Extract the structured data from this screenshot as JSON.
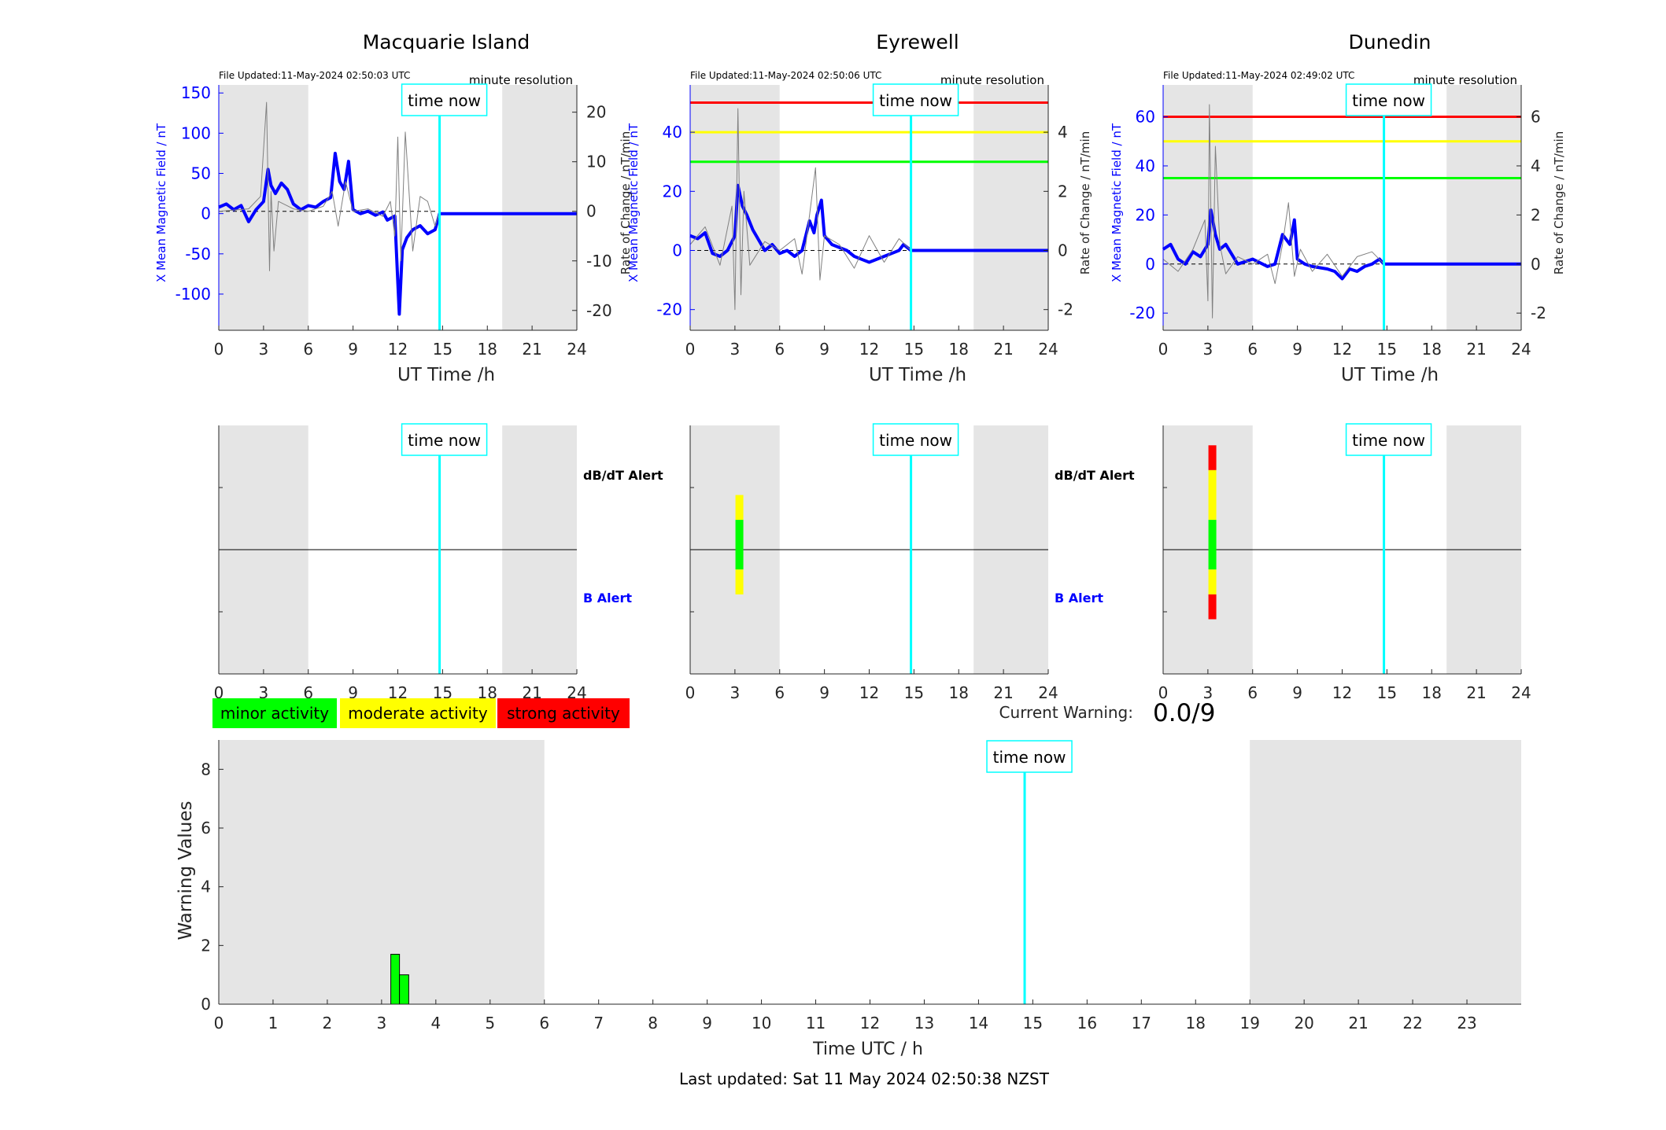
{
  "colors": {
    "shade": "#e5e5e5",
    "field": "#0000ff",
    "rate": "#808080",
    "now": "#00ffff",
    "green": "#00ff00",
    "yellow": "#ffff00",
    "red": "#ff0000",
    "axis": "#262626"
  },
  "labels": {
    "time_now": "time now",
    "minute_res": "minute resolution",
    "dbdt_alert": "dB/dT Alert",
    "b_alert": "B Alert",
    "current_warning_label": "Current Warning:",
    "current_warning_value": "0.0/9",
    "last_updated": "Last updated: Sat 11 May 2024 02:50:38 NZST"
  },
  "legend": [
    {
      "label": "minor activity",
      "color": "#00ff00"
    },
    {
      "label": "moderate activity",
      "color": "#ffff00"
    },
    {
      "label": "strong activity",
      "color": "#ff0000"
    }
  ],
  "chart_data": [
    {
      "type": "line",
      "title": "Macquarie Island",
      "file_updated": "File Updated:11-May-2024 02:50:03 UTC",
      "xlabel": "UT Time /h",
      "ylabel": "X Mean Magnetic Field / nT",
      "ylabel_right": "Rate of Change / nT/min",
      "xlim": [
        0,
        24
      ],
      "xticks": [
        0,
        3,
        6,
        9,
        12,
        15,
        18,
        21,
        24
      ],
      "ylim": [
        -145,
        160
      ],
      "yticks": [
        -100,
        -50,
        0,
        50,
        100,
        150
      ],
      "ylim_right": [
        -24,
        25.5
      ],
      "yticks_right": [
        -20,
        -10,
        0,
        10,
        20
      ],
      "shaded_x": [
        [
          0,
          6
        ],
        [
          19,
          24
        ]
      ],
      "time_now": 14.8,
      "thresholds": [],
      "series": [
        {
          "axis": "left",
          "color": "#0000ff",
          "x": [
            0,
            0.5,
            1,
            1.5,
            2,
            2.5,
            3,
            3.3,
            3.5,
            3.8,
            4.2,
            4.6,
            5,
            5.5,
            6,
            6.5,
            7,
            7.5,
            7.8,
            8.1,
            8.4,
            8.7,
            9,
            9.5,
            10,
            10.5,
            11,
            11.3,
            11.6,
            11.8,
            12,
            12.1,
            12.3,
            12.6,
            13,
            13.5,
            14,
            14.5,
            14.8,
            24
          ],
          "y": [
            8,
            12,
            5,
            10,
            -10,
            5,
            15,
            55,
            35,
            25,
            38,
            30,
            12,
            5,
            10,
            8,
            15,
            20,
            75,
            40,
            30,
            65,
            5,
            0,
            3,
            -2,
            2,
            -8,
            -5,
            -3,
            -85,
            -125,
            -45,
            -30,
            -20,
            -15,
            -25,
            -20,
            0,
            0
          ]
        },
        {
          "axis": "right",
          "color": "#808080",
          "x": [
            0,
            2,
            2.8,
            3.2,
            3.4,
            3.5,
            3.7,
            4,
            5,
            6,
            7,
            7.6,
            8,
            8.5,
            9,
            10,
            11,
            11.5,
            11.8,
            12,
            12.2,
            12.5,
            13,
            13.5,
            14,
            14.5,
            14.8
          ],
          "y": [
            0,
            0.5,
            3,
            22,
            -12,
            4,
            -8,
            2,
            0.5,
            0,
            1,
            4,
            -3,
            6,
            0,
            0.5,
            -1,
            2,
            -5,
            15,
            -10,
            16,
            -8,
            3,
            2,
            -3,
            0
          ]
        }
      ]
    },
    {
      "type": "line",
      "title": "Eyrewell",
      "file_updated": "File Updated:11-May-2024 02:50:06 UTC",
      "xlabel": "UT Time /h",
      "ylabel": "X Mean Magnetic Field / nT",
      "ylabel_right": "Rate of Change / nT/min",
      "xlim": [
        0,
        24
      ],
      "xticks": [
        0,
        3,
        6,
        9,
        12,
        15,
        18,
        21,
        24
      ],
      "ylim": [
        -27,
        56
      ],
      "yticks": [
        -20,
        0,
        20,
        40
      ],
      "ylim_right": [
        -2.7,
        5.6
      ],
      "yticks_right": [
        -2,
        0,
        2,
        4
      ],
      "shaded_x": [
        [
          0,
          6
        ],
        [
          19,
          24
        ]
      ],
      "time_now": 14.8,
      "thresholds": [
        {
          "y": 50,
          "color": "#ff0000"
        },
        {
          "y": 40,
          "color": "#ffff00"
        },
        {
          "y": 30,
          "color": "#00ff00"
        }
      ],
      "series": [
        {
          "axis": "left",
          "color": "#0000ff",
          "x": [
            0,
            0.5,
            1,
            1.5,
            2,
            2.5,
            3,
            3.2,
            3.5,
            3.8,
            4.2,
            5,
            5.5,
            6,
            6.5,
            7,
            7.5,
            8,
            8.3,
            8.5,
            8.8,
            9,
            9.5,
            10,
            10.5,
            11,
            11.5,
            12,
            12.5,
            13,
            13.5,
            14,
            14.3,
            14.8,
            24
          ],
          "y": [
            5,
            4,
            6,
            -1,
            -2,
            0,
            5,
            22,
            15,
            12,
            7,
            0,
            2,
            -1,
            0,
            -2,
            0,
            10,
            6,
            12,
            17,
            5,
            2,
            1,
            0,
            -2,
            -3,
            -4,
            -3,
            -2,
            -1,
            0,
            2,
            0,
            0
          ]
        },
        {
          "axis": "right",
          "color": "#808080",
          "x": [
            0,
            1,
            2,
            2.8,
            3,
            3.2,
            3.4,
            3.6,
            4,
            5,
            6,
            7,
            7.5,
            8,
            8.4,
            8.7,
            9,
            10,
            11,
            12,
            13,
            14,
            14.8
          ],
          "y": [
            0.2,
            0.8,
            -0.5,
            1.5,
            -2,
            4.8,
            -1.5,
            2,
            -0.5,
            0.3,
            0,
            0.4,
            -0.8,
            1.2,
            2.8,
            -1,
            0.5,
            0.2,
            -0.6,
            0.5,
            -0.4,
            0.4,
            0
          ]
        }
      ]
    },
    {
      "type": "line",
      "title": "Dunedin",
      "file_updated": "File Updated:11-May-2024 02:49:02 UTC",
      "xlabel": "UT Time /h",
      "ylabel": "X Mean Magnetic Field / nT",
      "ylabel_right": "Rate of Change / nT/min",
      "xlim": [
        0,
        24
      ],
      "xticks": [
        0,
        3,
        6,
        9,
        12,
        15,
        18,
        21,
        24
      ],
      "ylim": [
        -27,
        73
      ],
      "yticks": [
        -20,
        0,
        20,
        40,
        60
      ],
      "ylim_right": [
        -2.7,
        7.3
      ],
      "yticks_right": [
        -2,
        0,
        2,
        4,
        6
      ],
      "shaded_x": [
        [
          0,
          6
        ],
        [
          19,
          24
        ]
      ],
      "time_now": 14.8,
      "thresholds": [
        {
          "y": 60,
          "color": "#ff0000"
        },
        {
          "y": 50,
          "color": "#ffff00"
        },
        {
          "y": 35,
          "color": "#00ff00"
        }
      ],
      "series": [
        {
          "axis": "left",
          "color": "#0000ff",
          "x": [
            0,
            0.5,
            1,
            1.5,
            2,
            2.5,
            3,
            3.2,
            3.5,
            3.8,
            4.2,
            5,
            6,
            7,
            7.5,
            8,
            8.5,
            8.8,
            9,
            9.5,
            10,
            11,
            11.5,
            12,
            12.5,
            13,
            13.5,
            14,
            14.5,
            14.8,
            24
          ],
          "y": [
            6,
            8,
            2,
            0,
            5,
            3,
            8,
            22,
            12,
            6,
            8,
            0,
            2,
            -1,
            0,
            12,
            8,
            18,
            2,
            0,
            -1,
            -2,
            -3,
            -6,
            -2,
            -3,
            -1,
            0,
            2,
            0,
            0
          ]
        },
        {
          "axis": "right",
          "color": "#808080",
          "x": [
            0,
            1,
            2,
            2.8,
            3,
            3.1,
            3.3,
            3.5,
            3.8,
            4.2,
            5,
            6,
            7,
            7.5,
            8,
            8.4,
            8.8,
            9.2,
            10,
            11,
            12,
            13,
            14,
            14.8
          ],
          "y": [
            0.2,
            -0.3,
            0.6,
            1.8,
            -1.5,
            6.5,
            -2.2,
            4.8,
            0.8,
            -0.4,
            0.3,
            0,
            0.4,
            -0.8,
            0.8,
            2.5,
            -0.5,
            0.6,
            -0.3,
            0.4,
            -0.5,
            0.3,
            0.5,
            0
          ]
        }
      ]
    },
    {
      "type": "table",
      "title": "",
      "chart": "alert",
      "station": "Macquarie Island",
      "xlim": [
        0,
        24
      ],
      "xticks": [
        0,
        3,
        6,
        9,
        12,
        15,
        18,
        21,
        24
      ],
      "shaded_x": [
        [
          0,
          6
        ],
        [
          19,
          24
        ]
      ],
      "time_now": 14.8,
      "row_labels": [
        "dB/dT Alert",
        "B Alert"
      ],
      "alerts": []
    },
    {
      "type": "table",
      "title": "",
      "chart": "alert",
      "station": "Eyrewell",
      "xlim": [
        0,
        24
      ],
      "xticks": [
        0,
        3,
        6,
        9,
        12,
        15,
        18,
        21,
        24
      ],
      "shaded_x": [
        [
          0,
          6
        ],
        [
          19,
          24
        ]
      ],
      "time_now": 14.8,
      "row_labels": [
        "dB/dT Alert",
        "B Alert"
      ],
      "alerts": [
        {
          "row": "dB/dT Alert",
          "x": 3.3,
          "segments": [
            {
              "from": 0.62,
              "to": 0.72,
              "color": "#ffff00"
            },
            {
              "from": 0.42,
              "to": 0.62,
              "color": "#00ff00"
            },
            {
              "from": 0.32,
              "to": 0.42,
              "color": "#ffff00"
            }
          ]
        }
      ]
    },
    {
      "type": "table",
      "title": "",
      "chart": "alert",
      "station": "Dunedin",
      "xlim": [
        0,
        24
      ],
      "xticks": [
        0,
        3,
        6,
        9,
        12,
        15,
        18,
        21,
        24
      ],
      "shaded_x": [
        [
          0,
          6
        ],
        [
          19,
          24
        ]
      ],
      "time_now": 14.8,
      "row_labels": [
        "dB/dT Alert",
        "B Alert"
      ],
      "alerts": [
        {
          "row": "dB/dT Alert",
          "x": 3.3,
          "segments": [
            {
              "from": 0.82,
              "to": 0.92,
              "color": "#ff0000"
            },
            {
              "from": 0.62,
              "to": 0.82,
              "color": "#ffff00"
            },
            {
              "from": 0.42,
              "to": 0.62,
              "color": "#00ff00"
            },
            {
              "from": 0.32,
              "to": 0.42,
              "color": "#ffff00"
            },
            {
              "from": 0.22,
              "to": 0.32,
              "color": "#ff0000"
            }
          ]
        }
      ]
    },
    {
      "type": "bar",
      "title": "",
      "xlabel": "Time UTC / h",
      "ylabel": "Warning Values",
      "xlim": [
        0,
        24
      ],
      "xticks": [
        0,
        1,
        2,
        3,
        4,
        5,
        6,
        7,
        8,
        9,
        10,
        11,
        12,
        13,
        14,
        15,
        16,
        17,
        18,
        19,
        20,
        21,
        22,
        23
      ],
      "ylim": [
        0,
        9
      ],
      "yticks": [
        0,
        2,
        4,
        6,
        8
      ],
      "shaded_x": [
        [
          0,
          6
        ],
        [
          19,
          24
        ]
      ],
      "time_now": 14.85,
      "bars": [
        {
          "x0": 3.17,
          "x1": 3.33,
          "value": 1.7,
          "color": "#00ff00"
        },
        {
          "x0": 3.33,
          "x1": 3.5,
          "value": 1.0,
          "color": "#00ff00"
        }
      ]
    }
  ]
}
